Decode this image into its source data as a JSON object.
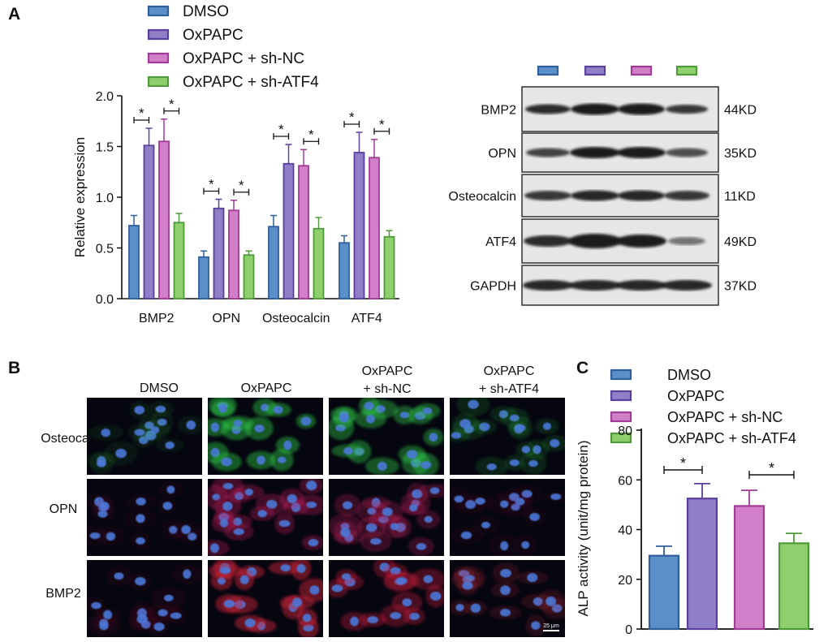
{
  "panel_labels": [
    "A",
    "B",
    "C"
  ],
  "colors": {
    "DMSO_fill": "#5b8fc9",
    "DMSO_edge": "#2f5f9a",
    "OxPAPC_fill": "#8e7fc7",
    "OxPAPC_edge": "#5a3f9e",
    "shNC_fill": "#d17fc8",
    "shNC_edge": "#a23a98",
    "shATF4_fill": "#8fcf6e",
    "shATF4_edge": "#4f9a3a"
  },
  "legend_A": [
    "DMSO",
    "OxPAPC",
    "OxPAPC + sh-NC",
    "OxPAPC + sh-ATF4"
  ],
  "legend_C": [
    "DMSO",
    "OxPAPC",
    "OxPAPC + sh-NC",
    "OxPAPC + sh-ATF4"
  ],
  "significance_marker": "*",
  "western_blot": {
    "rows": [
      {
        "protein": "BMP2",
        "size": "44KD"
      },
      {
        "protein": "OPN",
        "size": "35KD"
      },
      {
        "protein": "Osteocalcin",
        "size": "11KD"
      },
      {
        "protein": "ATF4",
        "size": "49KD"
      },
      {
        "protein": "GAPDH",
        "size": "37KD"
      }
    ]
  },
  "micrographs": {
    "columns": [
      "DMSO",
      "OxPAPC",
      "OxPAPC\n+ sh-NC",
      "OxPAPC\n+ sh-ATF4"
    ],
    "column_lines": [
      [
        "DMSO"
      ],
      [
        "OxPAPC"
      ],
      [
        "OxPAPC",
        "+ sh-NC"
      ],
      [
        "OxPAPC",
        "+ sh-ATF4"
      ]
    ],
    "rows": [
      "Osteocalcin",
      "OPN",
      "BMP2"
    ],
    "scale_bar": "25 μm"
  },
  "chart_data": [
    {
      "type": "bar",
      "panel": "A",
      "categories": [
        "BMP2",
        "OPN",
        "Osteocalcin",
        "ATF4"
      ],
      "ylabel": "Relative expression",
      "ylim": [
        0,
        2.0
      ],
      "yticks": [
        "0.0",
        "0.5",
        "1.0",
        "1.5",
        "2.0"
      ],
      "series": [
        {
          "name": "DMSO",
          "values": [
            0.72,
            0.41,
            0.71,
            0.55
          ],
          "errors": [
            0.1,
            0.06,
            0.11,
            0.07
          ]
        },
        {
          "name": "OxPAPC",
          "values": [
            1.51,
            0.89,
            1.33,
            1.44
          ],
          "errors": [
            0.17,
            0.09,
            0.19,
            0.2
          ]
        },
        {
          "name": "OxPAPC + sh-NC",
          "values": [
            1.55,
            0.87,
            1.31,
            1.39
          ],
          "errors": [
            0.22,
            0.1,
            0.16,
            0.18
          ]
        },
        {
          "name": "OxPAPC + sh-ATF4",
          "values": [
            0.75,
            0.43,
            0.69,
            0.61
          ],
          "errors": [
            0.09,
            0.04,
            0.11,
            0.06
          ]
        }
      ]
    },
    {
      "type": "bar",
      "panel": "C",
      "categories": [
        "DMSO",
        "OxPAPC",
        "OxPAPC + sh-NC",
        "OxPAPC + sh-ATF4"
      ],
      "ylabel": "ALP activity (unit/mg protein)",
      "ylim": [
        0,
        80
      ],
      "yticks": [
        "0",
        "20",
        "40",
        "60",
        "80"
      ],
      "values": [
        29.5,
        52.5,
        49.5,
        34.5
      ],
      "errors": [
        3.8,
        6.0,
        6.3,
        4.0
      ]
    }
  ]
}
